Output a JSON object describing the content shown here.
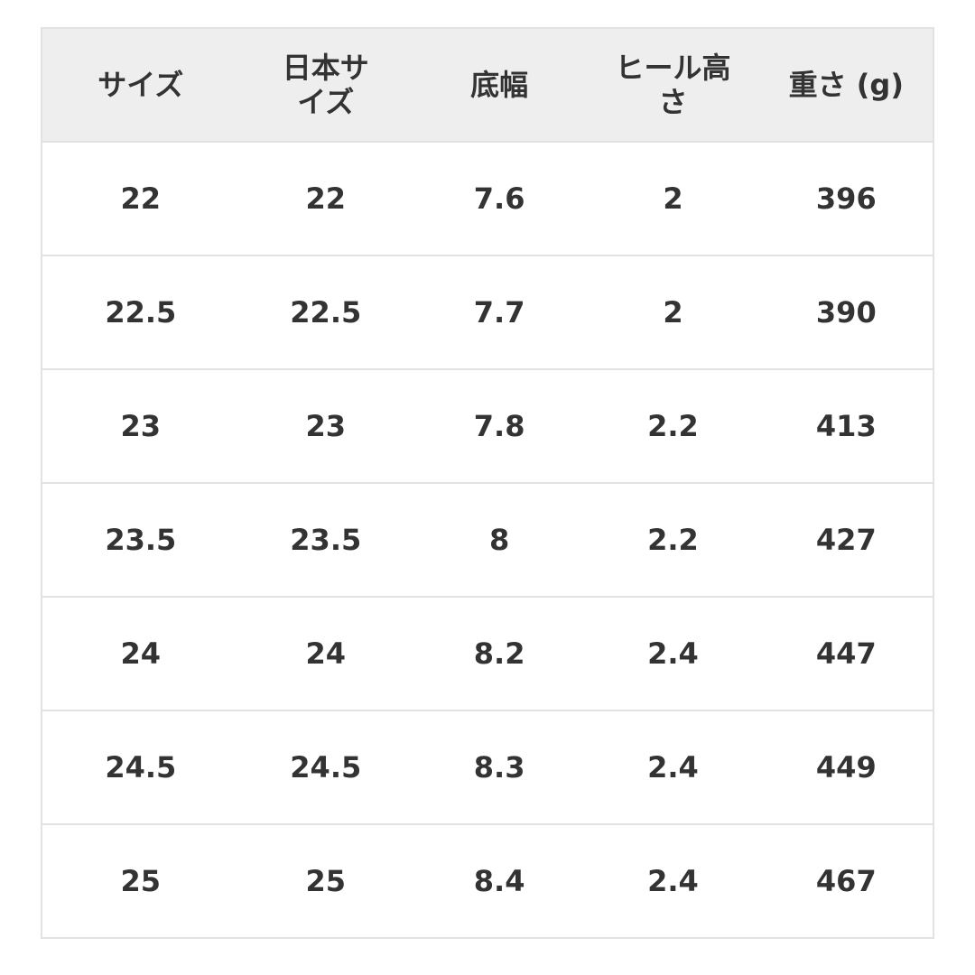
{
  "table": {
    "headers": [
      "サイズ",
      "日本サイズ",
      "底幅",
      "ヒール高さ",
      "重さ (g)"
    ],
    "rows": [
      [
        "22",
        "22",
        "7.6",
        "2",
        "396"
      ],
      [
        "22.5",
        "22.5",
        "7.7",
        "2",
        "390"
      ],
      [
        "23",
        "23",
        "7.8",
        "2.2",
        "413"
      ],
      [
        "23.5",
        "23.5",
        "8",
        "2.2",
        "427"
      ],
      [
        "24",
        "24",
        "8.2",
        "2.4",
        "447"
      ],
      [
        "24.5",
        "24.5",
        "8.3",
        "2.4",
        "449"
      ],
      [
        "25",
        "25",
        "8.4",
        "2.4",
        "467"
      ]
    ]
  }
}
